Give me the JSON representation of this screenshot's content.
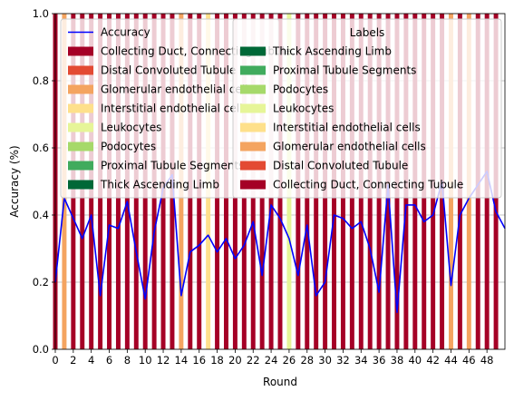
{
  "chart_data": {
    "type": "bar",
    "xlabel": "Round",
    "ylabel": "Accuracy (%)",
    "xlim": [
      0,
      50
    ],
    "ylim": [
      0,
      1
    ],
    "xticks": [
      "0",
      "2",
      "4",
      "6",
      "8",
      "10",
      "12",
      "14",
      "16",
      "18",
      "20",
      "22",
      "24",
      "26",
      "28",
      "30",
      "32",
      "34",
      "36",
      "38",
      "40",
      "42",
      "44",
      "46",
      "48"
    ],
    "yticks": [
      "0.0",
      "0.2",
      "0.4",
      "0.6",
      "0.8",
      "1.0"
    ],
    "grid": "y",
    "line_series": {
      "name": "Accuracy",
      "color": "#0000ff",
      "x": [
        0,
        1,
        2,
        3,
        4,
        5,
        6,
        7,
        8,
        9,
        10,
        11,
        12,
        13,
        14,
        15,
        16,
        17,
        18,
        19,
        20,
        21,
        22,
        23,
        24,
        25,
        26,
        27,
        28,
        29,
        30,
        31,
        32,
        33,
        34,
        35,
        36,
        37,
        38,
        39,
        40,
        41,
        42,
        43,
        44,
        45,
        46,
        47,
        48,
        49,
        50
      ],
      "values": [
        0.2,
        0.45,
        0.39,
        0.33,
        0.4,
        0.16,
        0.37,
        0.36,
        0.44,
        0.29,
        0.15,
        0.35,
        0.48,
        0.52,
        0.16,
        0.29,
        0.31,
        0.34,
        0.29,
        0.33,
        0.27,
        0.31,
        0.38,
        0.22,
        0.43,
        0.39,
        0.33,
        0.22,
        0.37,
        0.16,
        0.2,
        0.4,
        0.39,
        0.36,
        0.38,
        0.3,
        0.17,
        0.49,
        0.11,
        0.43,
        0.43,
        0.38,
        0.4,
        0.5,
        0.19,
        0.4,
        0.45,
        0.49,
        0.53,
        0.41,
        0.36
      ]
    },
    "bar_labels": [
      "Collecting Duct, Connecting Tubule",
      "Distal Convoluted Tubule",
      "Glomerular endothelial cells",
      "Interstitial endothelial cells",
      "Leukocytes",
      "Podocytes",
      "Proximal Tubule Segments",
      "Thick Ascending Limb"
    ],
    "bar_colors": {
      "Collecting Duct, Connecting Tubule": "#a50026",
      "Distal Convoluted Tubule": "#e34a33",
      "Glomerular endothelial cells": "#f4a460",
      "Interstitial endothelial cells": "#fee08b",
      "Leukocytes": "#e6f598",
      "Podocytes": "#a6d96a",
      "Proximal Tubule Segments": "#41ab5d",
      "Thick Ascending Limb": "#006837"
    },
    "bars": [
      "Collecting Duct, Connecting Tubule",
      "Glomerular endothelial cells",
      "Collecting Duct, Connecting Tubule",
      "Collecting Duct, Connecting Tubule",
      "Collecting Duct, Connecting Tubule",
      "Collecting Duct, Connecting Tubule",
      "Collecting Duct, Connecting Tubule",
      "Collecting Duct, Connecting Tubule",
      "Collecting Duct, Connecting Tubule",
      "Collecting Duct, Connecting Tubule",
      "Collecting Duct, Connecting Tubule",
      "Collecting Duct, Connecting Tubule",
      "Collecting Duct, Connecting Tubule",
      "Collecting Duct, Connecting Tubule",
      "Glomerular endothelial cells",
      "Collecting Duct, Connecting Tubule",
      "Collecting Duct, Connecting Tubule",
      "Interstitial endothelial cells",
      "Collecting Duct, Connecting Tubule",
      "Collecting Duct, Connecting Tubule",
      "Collecting Duct, Connecting Tubule",
      "Collecting Duct, Connecting Tubule",
      "Collecting Duct, Connecting Tubule",
      "Collecting Duct, Connecting Tubule",
      "Collecting Duct, Connecting Tubule",
      "Collecting Duct, Connecting Tubule",
      "Leukocytes",
      "Collecting Duct, Connecting Tubule",
      "Collecting Duct, Connecting Tubule",
      "Collecting Duct, Connecting Tubule",
      "Collecting Duct, Connecting Tubule",
      "Collecting Duct, Connecting Tubule",
      "Collecting Duct, Connecting Tubule",
      "Collecting Duct, Connecting Tubule",
      "Collecting Duct, Connecting Tubule",
      "Collecting Duct, Connecting Tubule",
      "Collecting Duct, Connecting Tubule",
      "Collecting Duct, Connecting Tubule",
      "Collecting Duct, Connecting Tubule",
      "Collecting Duct, Connecting Tubule",
      "Collecting Duct, Connecting Tubule",
      "Collecting Duct, Connecting Tubule",
      "Collecting Duct, Connecting Tubule",
      "Collecting Duct, Connecting Tubule",
      "Glomerular endothelial cells",
      "Collecting Duct, Connecting Tubule",
      "Glomerular endothelial cells",
      "Collecting Duct, Connecting Tubule",
      "Collecting Duct, Connecting Tubule",
      "Collecting Duct, Connecting Tubule"
    ],
    "legends": [
      {
        "location": "upper-left",
        "entries": [
          "Accuracy",
          "Collecting Duct, Connecting Tubule",
          "Distal Convoluted Tubule",
          "Glomerular endothelial cells",
          "Interstitial endothelial cells",
          "Leukocytes",
          "Podocytes",
          "Proximal Tubule Segments",
          "Thick Ascending Limb"
        ]
      },
      {
        "location": "upper-right",
        "title": "Labels",
        "entries": [
          "Thick Ascending Limb",
          "Proximal Tubule Segments",
          "Podocytes",
          "Leukocytes",
          "Interstitial endothelial cells",
          "Glomerular endothelial cells",
          "Distal Convoluted Tubule",
          "Collecting Duct, Connecting Tubule"
        ]
      }
    ]
  }
}
